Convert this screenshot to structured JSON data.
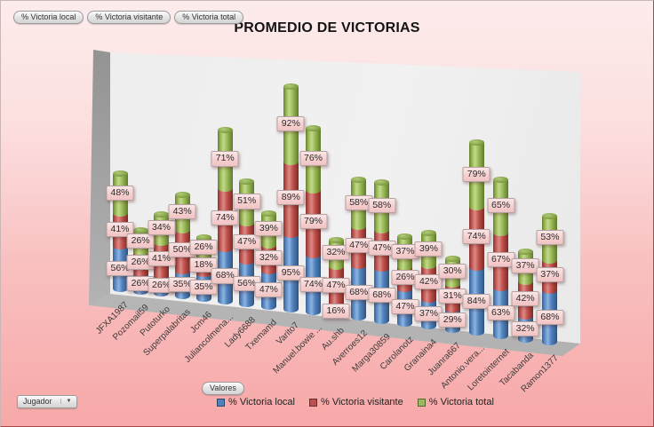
{
  "title": "PROMEDIO DE VICTORIAS",
  "filter_buttons": [
    "% Victoria local",
    "% Victoria visitante",
    "% Victoria total"
  ],
  "values_button": "Valores",
  "axis_field_button": "Jugador",
  "legend": [
    {
      "label": "% Victoria local",
      "color": "#4f81bd"
    },
    {
      "label": "% Victoria visitante",
      "color": "#c0504d"
    },
    {
      "label": "% Victoria total",
      "color": "#9bbb59"
    }
  ],
  "chart_data": {
    "type": "bar",
    "subtype": "3d-stacked-cylinder",
    "title": "PROMEDIO DE VICTORIAS",
    "value_suffix": "%",
    "legend_position": "bottom",
    "categories": [
      "JFXA1987",
      "Pozomail59",
      "Putoturko",
      "Superpalabritas",
      "Jcm46",
      "Juliancolmena...",
      "Lady6688",
      "Txemamd",
      "Varito7",
      "Manuel.bowie ...",
      "Au.shb",
      "Averroes12",
      "Marga30859",
      "Carolanotz",
      "Granaina4",
      "Juanra667",
      "Antonio.vera...",
      "Loretointernet",
      "Tacabanda",
      "Ramon1377"
    ],
    "series": [
      {
        "name": "% Victoria local",
        "color": "#4f81bd",
        "values": [
          56,
          26,
          26,
          35,
          35,
          68,
          56,
          47,
          95,
          74,
          16,
          68,
          68,
          47,
          37,
          29,
          84,
          63,
          32,
          68
        ]
      },
      {
        "name": "% Victoria visitante",
        "color": "#c0504d",
        "values": [
          41,
          26,
          41,
          50,
          18,
          74,
          47,
          32,
          89,
          79,
          47,
          47,
          47,
          26,
          42,
          31,
          74,
          67,
          42,
          37
        ]
      },
      {
        "name": "% Victoria total",
        "color": "#9bbb59",
        "values": [
          48,
          26,
          34,
          43,
          26,
          71,
          51,
          39,
          92,
          76,
          32,
          58,
          58,
          37,
          39,
          30,
          79,
          65,
          37,
          53
        ]
      }
    ]
  }
}
